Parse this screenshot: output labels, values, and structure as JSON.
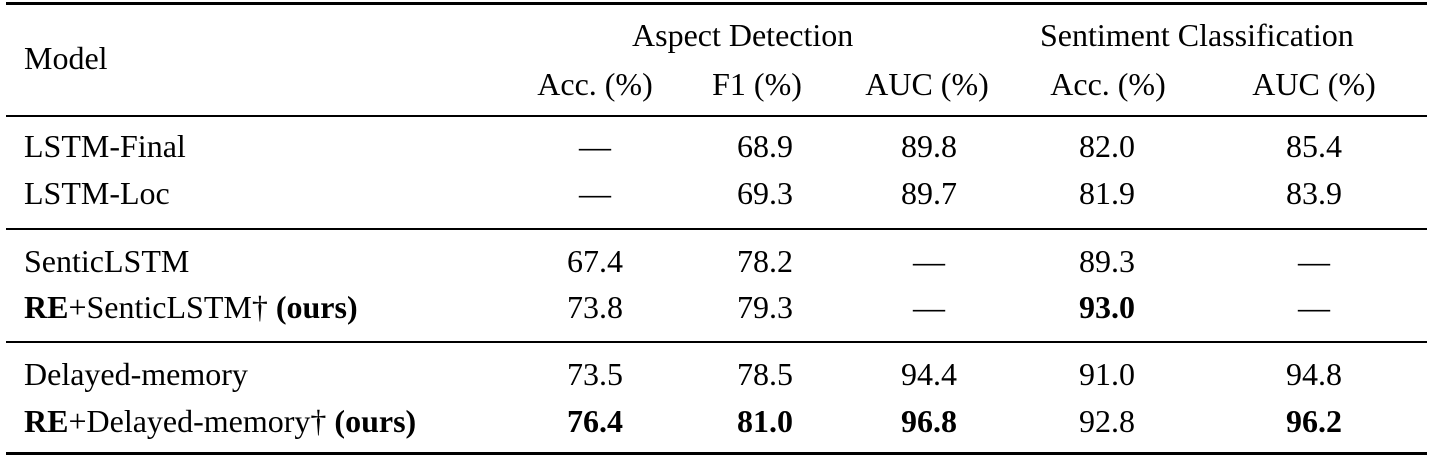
{
  "header": {
    "model_label": "Model",
    "group_aspect": "Aspect Detection",
    "group_sentiment": "Sentiment Classification",
    "columns": [
      "Acc. (%)",
      "F1 (%)",
      "AUC (%)",
      "Acc. (%)",
      "AUC (%)"
    ]
  },
  "rows": [
    {
      "model": "LSTM-Final",
      "prefix": "",
      "suffix": "",
      "values": [
        "—",
        "68.9",
        "89.8",
        "82.0",
        "85.4"
      ]
    },
    {
      "model": "LSTM-Loc",
      "prefix": "",
      "suffix": "",
      "values": [
        "—",
        "69.3",
        "89.7",
        "81.9",
        "83.9"
      ]
    },
    {
      "model": "SenticLSTM",
      "prefix": "",
      "suffix": "",
      "values": [
        "67.4",
        "78.2",
        "—",
        "89.3",
        "—"
      ]
    },
    {
      "model": "+SenticLSTM† ",
      "prefix": "RE",
      "suffix": "(ours)",
      "values": [
        "73.8",
        "79.3",
        "—",
        "93.0",
        "—"
      ]
    },
    {
      "model": "Delayed-memory",
      "prefix": "",
      "suffix": "",
      "values": [
        "73.5",
        "78.5",
        "94.4",
        "91.0",
        "94.8"
      ]
    },
    {
      "model": "+Delayed-memory† ",
      "prefix": "RE",
      "suffix": "(ours)",
      "values": [
        "76.4",
        "81.0",
        "96.8",
        "92.8",
        "96.2"
      ]
    }
  ]
}
